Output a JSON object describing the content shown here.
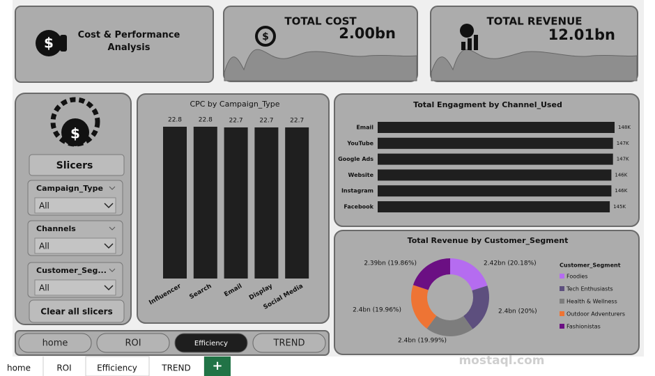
{
  "header": {
    "title": "Cost & Performance Analysis"
  },
  "kpis": [
    {
      "label": "TOTAL COST",
      "value": "2.00bn"
    },
    {
      "label": "TOTAL REVENUE",
      "value": "12.01bn"
    }
  ],
  "slicers": {
    "title": "Slicers",
    "items": [
      {
        "label": "Campaign_Type",
        "value": "All"
      },
      {
        "label": "Channels",
        "value": "All"
      },
      {
        "label": "Customer_Seg...",
        "value": "All"
      }
    ],
    "clear": "Clear all slicers"
  },
  "nav": [
    "home",
    "ROI",
    "Efficiency",
    "TREND"
  ],
  "sheet_tabs": [
    "home",
    "ROI",
    "Efficiency",
    "TREND",
    "+"
  ],
  "watermark": "mostaql.com",
  "chart_data": [
    {
      "type": "bar",
      "title": "CPC by Campaign_Type",
      "categories": [
        "Influencer",
        "Search",
        "Email",
        "Display",
        "Social Media"
      ],
      "values": [
        22.8,
        22.8,
        22.7,
        22.7,
        22.7
      ],
      "color": "#1f1f1f"
    },
    {
      "type": "hbar",
      "title": "Total Engagment by Channel_Used",
      "categories": [
        "Email",
        "YouTube",
        "Google Ads",
        "Website",
        "Instagram",
        "Facebook"
      ],
      "values": [
        148000,
        147000,
        147000,
        146000,
        146000,
        145000
      ],
      "value_labels": [
        "148K",
        "147K",
        "147K",
        "146K",
        "146K",
        "145K"
      ],
      "color": "#1f1f1f"
    },
    {
      "type": "donut",
      "title": "Total Revenue by Customer_Segment",
      "legend_title": "Customer_Segment",
      "categories": [
        "Foodies",
        "Tech Enthusiasts",
        "Health & Wellness",
        "Outdoor Adventurers",
        "Fashionistas"
      ],
      "values": [
        20.18,
        20,
        19.99,
        19.96,
        19.86
      ],
      "value_labels": [
        "2.42bn (20.18%)",
        "2.4bn (20%)",
        "2.4bn (19.99%)",
        "2.4bn (19.96%)",
        "2.39bn (19.86%)"
      ],
      "colors": [
        "#b56cf0",
        "#5d4f7e",
        "#7d7d7d",
        "#ee7434",
        "#6b0f83"
      ]
    }
  ]
}
